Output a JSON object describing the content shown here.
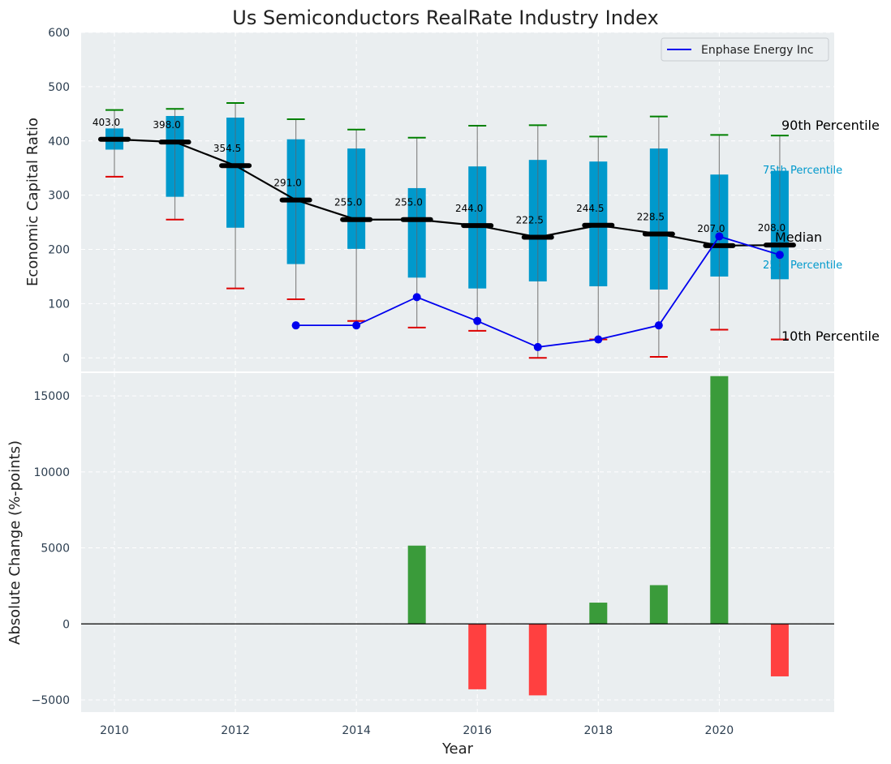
{
  "title": "Us Semiconductors RealRate Industry Index",
  "colors": {
    "panel_bg": "#eaeef0",
    "box": "#0099cc",
    "median": "#000000",
    "p90": "#008000",
    "p10": "#dd0000",
    "company": "#0000ee",
    "pos_bar": "#3a9b3a",
    "neg_bar": "#ff4040"
  },
  "chart_data": [
    {
      "type": "box",
      "ylabel": "Economic Capital Ratio",
      "ylim": [
        -25,
        600
      ],
      "yticks": [
        0,
        100,
        200,
        300,
        400,
        500,
        600
      ],
      "years": [
        2010,
        2011,
        2012,
        2013,
        2014,
        2015,
        2016,
        2017,
        2018,
        2019,
        2020,
        2021
      ],
      "p10": [
        334,
        255,
        128,
        108,
        68,
        56,
        50,
        0,
        34,
        2,
        52,
        34
      ],
      "q1": [
        384,
        297,
        240,
        173,
        201,
        148,
        128,
        141,
        132,
        126,
        150,
        145
      ],
      "median": [
        403.0,
        398.0,
        354.5,
        291.0,
        255.0,
        255.0,
        244.0,
        222.5,
        244.5,
        228.5,
        207.0,
        208.0
      ],
      "median_labels": [
        "403.0",
        "398.0",
        "354.5",
        "291.0",
        "255.0",
        "255.0",
        "244.0",
        "222.5",
        "244.5",
        "228.5",
        "207.0",
        "208.0"
      ],
      "q3": [
        423,
        446,
        443,
        403,
        386,
        313,
        353,
        365,
        362,
        386,
        338,
        345
      ],
      "p90": [
        457,
        459,
        470,
        440,
        421,
        406,
        428,
        429,
        408,
        445,
        411,
        410
      ],
      "company": {
        "name": "Enphase Energy Inc",
        "years": [
          2013,
          2014,
          2015,
          2016,
          2017,
          2018,
          2019,
          2020,
          2021
        ],
        "values": [
          60,
          60,
          112,
          68,
          20,
          34,
          60,
          224,
          190
        ]
      },
      "end_labels": {
        "p90": "90th Percentile",
        "q3": "75th Percentile",
        "median": "Median",
        "q1": "25th Percentile",
        "p10": "10th Percentile"
      },
      "legend_position": "top-right",
      "grid": true
    },
    {
      "type": "bar",
      "ylabel": "Absolute Change (%-points)",
      "xlabel": "Year",
      "ylim": [
        -5800,
        16500
      ],
      "yticks": [
        -5000,
        0,
        5000,
        10000,
        15000
      ],
      "ytick_labels": [
        "−5000",
        "0",
        "5000",
        "10000",
        "15000"
      ],
      "years": [
        2015,
        2016,
        2017,
        2018,
        2019,
        2020,
        2021
      ],
      "values": [
        5150,
        -4300,
        -4700,
        1400,
        2550,
        16300,
        -3450
      ],
      "xticks": [
        2010,
        2012,
        2014,
        2016,
        2018,
        2020
      ],
      "xlim": [
        2009.45,
        2021.9
      ],
      "grid": true
    }
  ]
}
